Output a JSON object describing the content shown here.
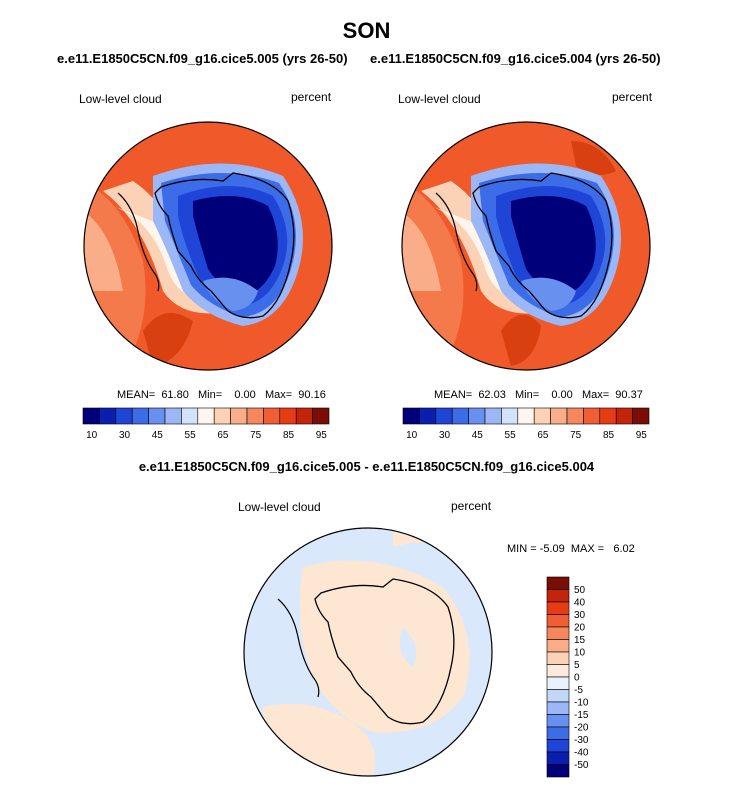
{
  "title": "SON",
  "subtitles": [
    "e.e11.E1850C5CN.f09_g16.cice5.005 (yrs 26-50)",
    "e.e11.E1850C5CN.f09_g16.cice5.004 (yrs 26-50)"
  ],
  "panels": [
    {
      "variable": "Low-level cloud",
      "units": "percent",
      "stats": "MEAN=  61.80   Min=    0.00   Max=  90.16"
    },
    {
      "variable": "Low-level cloud",
      "units": "percent",
      "stats": "MEAN=  62.03   Min=    0.00   Max=  90.37"
    }
  ],
  "colorbar_top": {
    "colors": [
      "#00007a",
      "#0a1fb0",
      "#1f45d6",
      "#3d6ce8",
      "#6790ef",
      "#9cb7f5",
      "#d2e2fb",
      "#fff5ec",
      "#fcd2b6",
      "#f9ad88",
      "#f6865e",
      "#f25e34",
      "#e63c16",
      "#c2250a",
      "#7a0d04"
    ],
    "tick_labels": [
      "10",
      "30",
      "45",
      "55",
      "65",
      "75",
      "85",
      "95"
    ]
  },
  "diff": {
    "title": "e.e11.E1850C5CN.f09_g16.cice5.005 - e.e11.E1850C5CN.f09_g16.cice5.004",
    "variable": "Low-level cloud",
    "units": "percent",
    "minmax": "MIN = -5.09  MAX =   6.02",
    "colors": [
      "#7a0d04",
      "#c2250a",
      "#e63c16",
      "#f25e34",
      "#f6865e",
      "#f9ad88",
      "#fcd2b6",
      "#fdeadc",
      "#e8f1fc",
      "#c3d7f7",
      "#9cb7f5",
      "#6790ef",
      "#3d6ce8",
      "#1f45d6",
      "#0a1fb0",
      "#00007a"
    ],
    "tick_labels": [
      "50",
      "40",
      "30",
      "20",
      "15",
      "10",
      "5",
      "0",
      "-5",
      "-10",
      "-15",
      "-20",
      "-30",
      "-40",
      "-50"
    ]
  },
  "colors": {
    "ocean_warm": "#f05a2a",
    "ocean_light": "#f7a07a",
    "ice_deep": "#00007a",
    "ice_mid": "#3558e0",
    "diff_neg": "#d9e9fb",
    "diff_pos": "#fde6d2"
  }
}
